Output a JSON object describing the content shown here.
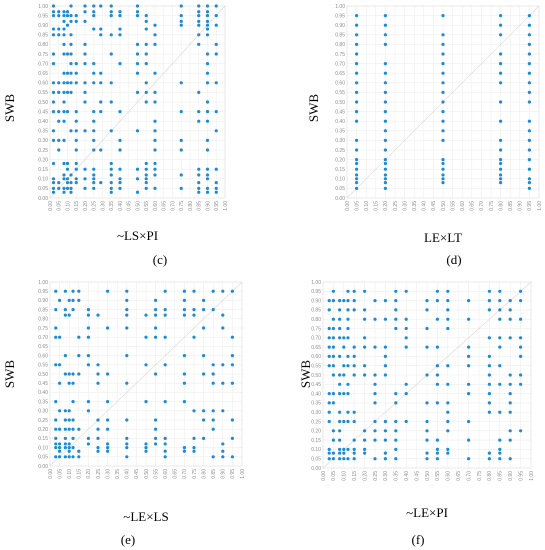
{
  "chart_data": [
    {
      "panel": "(c)",
      "type": "scatter",
      "xlabel": "~LS×PI",
      "ylabel": "SWB",
      "xlim": [
        0,
        1
      ],
      "ylim": [
        0,
        1
      ],
      "xticks": [
        "0.00",
        "0.05",
        "0.10",
        "0.15",
        "0.20",
        "0.25",
        "0.30",
        "0.35",
        "0.40",
        "0.45",
        "0.50",
        "0.55",
        "0.60",
        "0.65",
        "0.70",
        "0.75",
        "0.80",
        "0.85",
        "0.90",
        "0.95",
        "1.00"
      ],
      "yticks": [
        "0.00",
        "0.05",
        "0.10",
        "0.15",
        "0.20",
        "0.25",
        "0.30",
        "0.35",
        "0.40",
        "0.45",
        "0.50",
        "0.55",
        "0.60",
        "0.65",
        "0.70",
        "0.75",
        "0.80",
        "0.85",
        "0.90",
        "0.95",
        "1.00"
      ],
      "xs": [
        0.02,
        0.05,
        0.08,
        0.1,
        0.12,
        0.15,
        0.2,
        0.25,
        0.29,
        0.35,
        0.4,
        0.5,
        0.55,
        0.6,
        0.75,
        0.85,
        0.9,
        0.95
      ],
      "ys": [
        0.03,
        0.05,
        0.08,
        0.1,
        0.12,
        0.15,
        0.18,
        0.25,
        0.3,
        0.35,
        0.4,
        0.45,
        0.5,
        0.55,
        0.6,
        0.65,
        0.7,
        0.75,
        0.8,
        0.85,
        0.88,
        0.9,
        0.92,
        0.95,
        0.97,
        1.0
      ],
      "seed": 11,
      "density": 0.55
    },
    {
      "panel": "(d)",
      "type": "scatter",
      "xlabel": "LE×LT",
      "ylabel": "SWB",
      "xlim": [
        0,
        1
      ],
      "ylim": [
        0,
        1
      ],
      "xticks": [
        "0.00",
        "0.05",
        "0.10",
        "0.15",
        "0.20",
        "0.25",
        "0.30",
        "0.35",
        "0.40",
        "0.45",
        "0.50",
        "0.55",
        "0.60",
        "0.65",
        "0.70",
        "0.75",
        "0.80",
        "0.85",
        "0.90",
        "0.95",
        "1.00"
      ],
      "yticks": [
        "0.00",
        "0.05",
        "0.10",
        "0.15",
        "0.20",
        "0.25",
        "0.30",
        "0.35",
        "0.40",
        "0.45",
        "0.50",
        "0.55",
        "0.60",
        "0.65",
        "0.70",
        "0.75",
        "0.80",
        "0.85",
        "0.90",
        "0.95",
        "1.00"
      ],
      "xs": [
        0.05,
        0.2,
        0.5,
        0.8,
        0.95
      ],
      "ys": [
        0.05,
        0.08,
        0.1,
        0.12,
        0.15,
        0.18,
        0.2,
        0.25,
        0.3,
        0.35,
        0.4,
        0.45,
        0.5,
        0.55,
        0.6,
        0.65,
        0.7,
        0.75,
        0.8,
        0.85,
        0.9,
        0.95
      ],
      "seed": 23,
      "density": 0.9
    },
    {
      "panel": "(e)",
      "type": "scatter",
      "xlabel": "~LE×LS",
      "ylabel": "SWB",
      "xlim": [
        0,
        1
      ],
      "ylim": [
        0,
        1
      ],
      "xticks": [
        "0.00",
        "0.05",
        "0.10",
        "0.15",
        "0.20",
        "0.25",
        "0.30",
        "0.35",
        "0.40",
        "0.45",
        "0.50",
        "0.55",
        "0.60",
        "0.65",
        "0.70",
        "0.75",
        "0.80",
        "0.85",
        "0.90",
        "0.95",
        "1.00"
      ],
      "yticks": [
        "0.00",
        "0.05",
        "0.10",
        "0.15",
        "0.20",
        "0.25",
        "0.30",
        "0.35",
        "0.40",
        "0.45",
        "0.50",
        "0.55",
        "0.60",
        "0.65",
        "0.70",
        "0.75",
        "0.80",
        "0.85",
        "0.90",
        "0.95",
        "1.00"
      ],
      "xs": [
        0.03,
        0.05,
        0.08,
        0.1,
        0.12,
        0.15,
        0.2,
        0.25,
        0.3,
        0.4,
        0.5,
        0.55,
        0.6,
        0.7,
        0.75,
        0.8,
        0.85,
        0.9,
        0.95
      ],
      "ys": [
        0.05,
        0.08,
        0.1,
        0.12,
        0.15,
        0.2,
        0.25,
        0.3,
        0.35,
        0.45,
        0.5,
        0.55,
        0.6,
        0.7,
        0.75,
        0.82,
        0.85,
        0.9,
        0.95
      ],
      "seed": 37,
      "density": 0.5
    },
    {
      "panel": "(f)",
      "type": "scatter",
      "xlabel": "~LE×PI",
      "ylabel": "SWB",
      "xlim": [
        0,
        1
      ],
      "ylim": [
        0,
        1
      ],
      "xticks": [
        "0.00",
        "0.05",
        "0.10",
        "0.15",
        "0.20",
        "0.25",
        "0.30",
        "0.35",
        "0.40",
        "0.45",
        "0.50",
        "0.55",
        "0.60",
        "0.65",
        "0.70",
        "0.75",
        "0.80",
        "0.85",
        "0.90",
        "0.95",
        "1.00"
      ],
      "yticks": [
        "0.00",
        "0.05",
        "0.10",
        "0.15",
        "0.20",
        "0.25",
        "0.30",
        "0.35",
        "0.40",
        "0.45",
        "0.50",
        "0.55",
        "0.60",
        "0.65",
        "0.70",
        "0.75",
        "0.80",
        "0.85",
        "0.90",
        "0.95",
        "1.00"
      ],
      "xs": [
        0.03,
        0.05,
        0.08,
        0.1,
        0.12,
        0.15,
        0.2,
        0.25,
        0.3,
        0.35,
        0.4,
        0.5,
        0.55,
        0.6,
        0.7,
        0.8,
        0.85,
        0.9,
        0.95
      ],
      "ys": [
        0.05,
        0.08,
        0.1,
        0.15,
        0.2,
        0.25,
        0.3,
        0.35,
        0.4,
        0.45,
        0.5,
        0.55,
        0.6,
        0.65,
        0.7,
        0.75,
        0.8,
        0.85,
        0.9,
        0.95
      ],
      "seed": 53,
      "density": 0.6
    }
  ]
}
